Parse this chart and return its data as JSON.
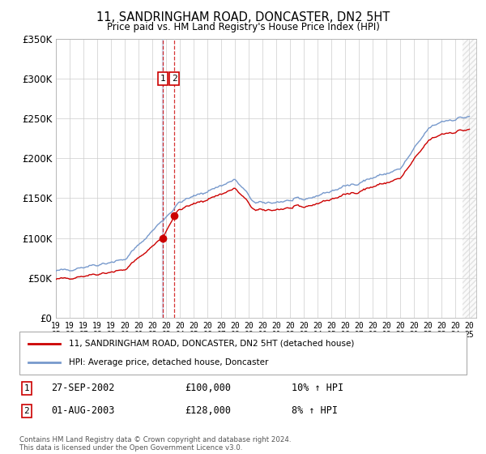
{
  "title": "11, SANDRINGHAM ROAD, DONCASTER, DN2 5HT",
  "subtitle": "Price paid vs. HM Land Registry's House Price Index (HPI)",
  "background_color": "#ffffff",
  "grid_color": "#cccccc",
  "property_color": "#cc0000",
  "hpi_color": "#7799cc",
  "sale1_date_num": 2002.74,
  "sale1_price": 100000,
  "sale1_label": "1",
  "sale1_display": "27-SEP-2002",
  "sale1_amount": "£100,000",
  "sale1_pct": "10% ↑ HPI",
  "sale2_date_num": 2003.58,
  "sale2_price": 128000,
  "sale2_label": "2",
  "sale2_display": "01-AUG-2003",
  "sale2_amount": "£128,000",
  "sale2_pct": "8% ↑ HPI",
  "legend_property": "11, SANDRINGHAM ROAD, DONCASTER, DN2 5HT (detached house)",
  "legend_hpi": "HPI: Average price, detached house, Doncaster",
  "footer": "Contains HM Land Registry data © Crown copyright and database right 2024.\nThis data is licensed under the Open Government Licence v3.0.",
  "xmin": 1995.0,
  "xmax": 2025.5,
  "ymin": 0,
  "ymax": 350000,
  "yticks": [
    0,
    50000,
    100000,
    150000,
    200000,
    250000,
    300000,
    350000
  ],
  "ytick_labels": [
    "£0",
    "£50K",
    "£100K",
    "£150K",
    "£200K",
    "£250K",
    "£300K",
    "£350K"
  ]
}
